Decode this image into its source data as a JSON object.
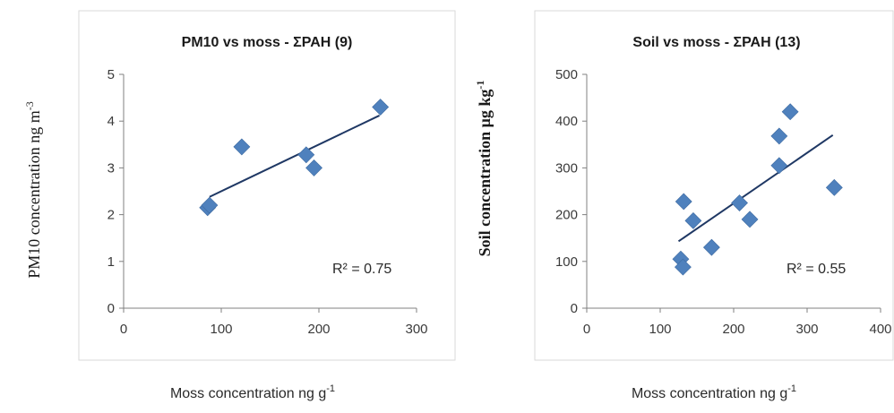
{
  "chart_data": [
    {
      "type": "scatter",
      "title": "PM10 vs moss - ΣPAH (9)",
      "ylabel": "PM10 concentration ng m",
      "ylabel_sup": "-3",
      "xlabel": "Moss concentration ng g",
      "xlabel_sup": "-1",
      "xlim": [
        0,
        300
      ],
      "ylim": [
        0,
        5
      ],
      "xticks": [
        "0",
        "100",
        "200",
        "300"
      ],
      "yticks": [
        "0",
        "1",
        "2",
        "3",
        "4",
        "5"
      ],
      "points": [
        {
          "x": 86,
          "y": 2.15
        },
        {
          "x": 88,
          "y": 2.2
        },
        {
          "x": 121,
          "y": 3.45
        },
        {
          "x": 187,
          "y": 3.28
        },
        {
          "x": 195,
          "y": 3.0
        },
        {
          "x": 263,
          "y": 4.3
        }
      ],
      "trendline": {
        "x": [
          88,
          262
        ],
        "y": [
          2.38,
          4.12
        ]
      },
      "r2_label": "R² = 0.75",
      "marker_color": "#4f81bd",
      "line_color": "#1f3864",
      "grid": false
    },
    {
      "type": "scatter",
      "title": "Soil vs moss - ΣPAH (13)",
      "ylabel": "Soil concentration μg kg",
      "ylabel_sup": "-1",
      "xlabel": "Moss concentration ng g",
      "xlabel_sup": "-1",
      "xlim": [
        0,
        400
      ],
      "ylim": [
        0,
        500
      ],
      "xticks": [
        "0",
        "100",
        "200",
        "300",
        "400"
      ],
      "yticks": [
        "0",
        "100",
        "200",
        "300",
        "400",
        "500"
      ],
      "points": [
        {
          "x": 128,
          "y": 105
        },
        {
          "x": 131,
          "y": 88
        },
        {
          "x": 132,
          "y": 228
        },
        {
          "x": 145,
          "y": 187
        },
        {
          "x": 170,
          "y": 130
        },
        {
          "x": 208,
          "y": 225
        },
        {
          "x": 222,
          "y": 190
        },
        {
          "x": 262,
          "y": 368
        },
        {
          "x": 262,
          "y": 305
        },
        {
          "x": 277,
          "y": 420
        },
        {
          "x": 337,
          "y": 258
        }
      ],
      "trendline": {
        "x": [
          125,
          335
        ],
        "y": [
          143,
          370
        ]
      },
      "r2_label": "R² = 0.55",
      "marker_color": "#4f81bd",
      "line_color": "#1f3864",
      "grid": false
    }
  ]
}
